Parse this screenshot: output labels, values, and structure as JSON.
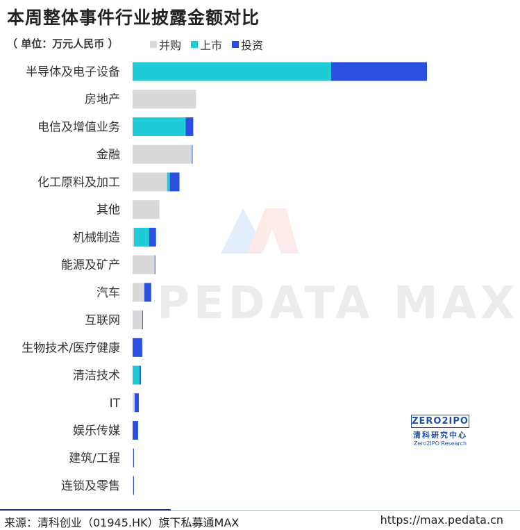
{
  "title": "本周整体事件行业披露金额对比",
  "unit": "（ 单位：万元人民币 ）",
  "legend": [
    {
      "label": "并购",
      "color": "#d9d9d9"
    },
    {
      "label": "上市",
      "color": "#1fcbd6"
    },
    {
      "label": "投资",
      "color": "#2b50e0"
    }
  ],
  "watermark": "PEDATA MAX",
  "logo": {
    "top": "ZERO2IPO",
    "cn": "清科研究中心",
    "en": "Zero2IPO Research"
  },
  "footer": {
    "source": "来源：清科创业（01945.HK）旗下私募通MAX",
    "site": "https://max.pedata.cn"
  },
  "chart_data": {
    "type": "bar",
    "orientation": "horizontal",
    "stacked": true,
    "categories": [
      "半导体及电子设备",
      "房地产",
      "电信及增值业务",
      "金融",
      "化工原料及加工",
      "其他",
      "机械制造",
      "能源及矿产",
      "汽车",
      "互联网",
      "生物技术/医疗健康",
      "清洁技术",
      "IT",
      "娱乐传媒",
      "建筑/工程",
      "连锁及零售"
    ],
    "series": [
      {
        "name": "并购",
        "color": "#d9d9d9",
        "values": [
          0,
          92,
          0,
          86,
          50,
          39,
          2,
          32,
          17,
          14,
          0,
          0,
          3,
          0,
          1,
          1
        ]
      },
      {
        "name": "上市",
        "color": "#1fcbd6",
        "values": [
          288,
          0,
          77,
          0,
          4,
          0,
          22,
          0,
          0,
          0,
          0,
          10,
          0,
          0,
          0,
          0
        ]
      },
      {
        "name": "投资",
        "color": "#2b50e0",
        "values": [
          139,
          0,
          11,
          1,
          14,
          0,
          10,
          1,
          10,
          1,
          14,
          2,
          6,
          8,
          1,
          1
        ]
      }
    ],
    "xlim": [
      0,
      430
    ],
    "grid": false,
    "legend_position": "top-left"
  }
}
